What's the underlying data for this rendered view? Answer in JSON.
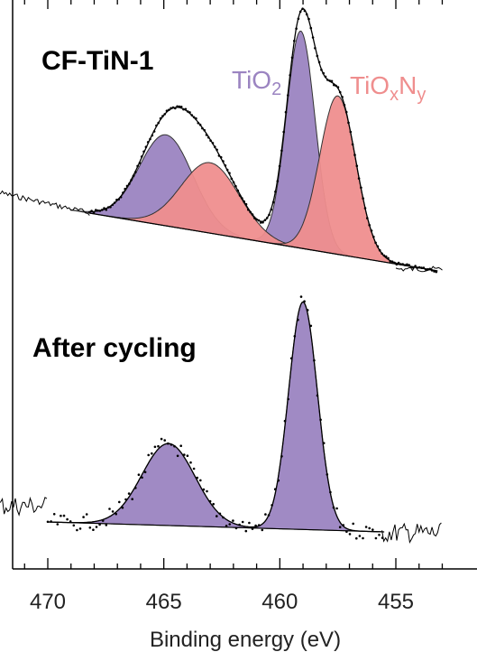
{
  "chart_data": {
    "type": "line",
    "xlabel": "Binding energy (eV)",
    "x_reversed": true,
    "xlim": [
      473,
      453
    ],
    "x_ticks": [
      470,
      465,
      460,
      455
    ],
    "grid": false,
    "colors": {
      "TiO2": "#9b84c1",
      "TiOxNy": "#ef8e8e",
      "line": "#000000"
    },
    "panels": [
      {
        "label": "CF-TiN-1",
        "components": [
          {
            "name": "TiO2",
            "subscript": "2",
            "base": "TiO",
            "peaks": [
              {
                "center": 464.9,
                "height": 0.31
              },
              {
                "center": 459.1,
                "height": 0.74
              }
            ]
          },
          {
            "name": "TiOxNy",
            "peaks": [
              {
                "center": 463.0,
                "height": 0.24
              },
              {
                "center": 457.5,
                "height": 0.54
              }
            ]
          }
        ]
      },
      {
        "label": "After cycling",
        "components": [
          {
            "name": "TiO2",
            "peaks": [
              {
                "center": 464.8,
                "height": 0.36
              },
              {
                "center": 459.0,
                "height": 1.0
              }
            ]
          }
        ]
      }
    ]
  }
}
